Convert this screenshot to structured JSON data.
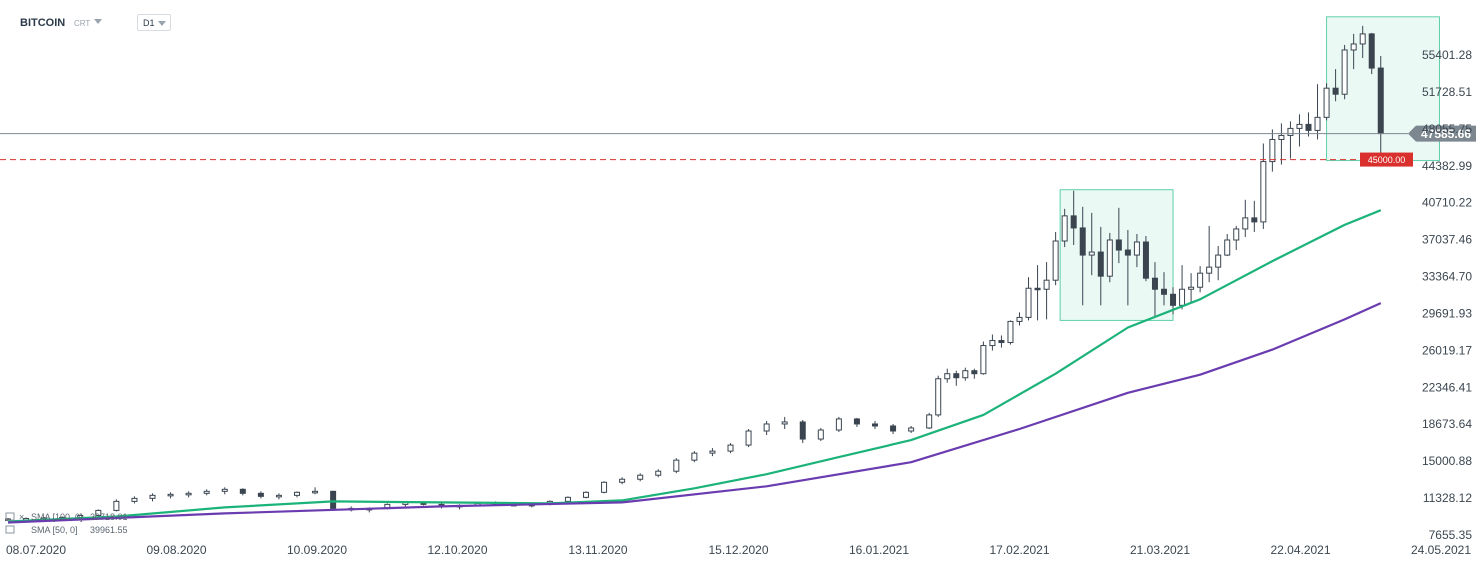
{
  "header": {
    "symbol": "BITCOIN",
    "chart_type": "CRT",
    "timeframe": "D1"
  },
  "indicators": [
    {
      "label": "SMA [100, 0]",
      "value": "30718.01",
      "color": "#6a3cb0"
    },
    {
      "label": "SMA [50, 0]",
      "value": "39961.55",
      "color": "#1bb37a"
    }
  ],
  "price_levels": {
    "current": {
      "value": 47585.66,
      "label": "47585.66",
      "color": "#7d8790"
    },
    "alert": {
      "value": 45000,
      "label": "45000.00",
      "color": "#d9302e"
    }
  },
  "chart_data": {
    "type": "candlestick",
    "title": "BITCOIN",
    "timeframe": "D1",
    "xlabel": "",
    "ylabel": "",
    "x_ticks": [
      "08.07.2020",
      "09.08.2020",
      "10.09.2020",
      "12.10.2020",
      "13.11.2020",
      "15.12.2020",
      "16.01.2021",
      "17.02.2021",
      "21.03.2021",
      "22.04.2021",
      "24.05.2021"
    ],
    "y_ticks": [
      "55401.28",
      "51728.51",
      "48055.75",
      "44382.99",
      "40710.22",
      "37037.46",
      "33364.70",
      "29691.93",
      "26019.17",
      "22346.41",
      "18673.64",
      "15000.88",
      "11328.12",
      "7655.35"
    ],
    "ylim": [
      7655.35,
      58500
    ],
    "x_range_days": [
      0,
      320
    ],
    "ohlc_by_day": [
      [
        0,
        9200,
        9350,
        9100,
        9250
      ],
      [
        4,
        9250,
        9400,
        9150,
        9300
      ],
      [
        8,
        9300,
        9450,
        9200,
        9350
      ],
      [
        12,
        9350,
        9500,
        9200,
        9400
      ],
      [
        16,
        9400,
        9700,
        9300,
        9600
      ],
      [
        20,
        9600,
        10200,
        9500,
        10100
      ],
      [
        24,
        10100,
        11200,
        10000,
        11000
      ],
      [
        28,
        11000,
        11500,
        10800,
        11300
      ],
      [
        32,
        11300,
        11800,
        11000,
        11600
      ],
      [
        36,
        11600,
        11900,
        11300,
        11700
      ],
      [
        40,
        11700,
        12000,
        11400,
        11800
      ],
      [
        44,
        11800,
        12200,
        11600,
        12000
      ],
      [
        48,
        12000,
        12400,
        11700,
        12200
      ],
      [
        52,
        12200,
        12300,
        11600,
        11800
      ],
      [
        56,
        11800,
        12000,
        11300,
        11500
      ],
      [
        60,
        11500,
        11800,
        11200,
        11600
      ],
      [
        64,
        11600,
        12000,
        11400,
        11900
      ],
      [
        68,
        11900,
        12400,
        11700,
        12000
      ],
      [
        72,
        12000,
        12050,
        10100,
        10300
      ],
      [
        76,
        10300,
        10500,
        10000,
        10200
      ],
      [
        80,
        10200,
        10400,
        9900,
        10300
      ],
      [
        84,
        10300,
        10800,
        10200,
        10700
      ],
      [
        88,
        10700,
        11000,
        10500,
        10900
      ],
      [
        92,
        10900,
        11000,
        10600,
        10700
      ],
      [
        96,
        10700,
        10800,
        10300,
        10500
      ],
      [
        100,
        10500,
        10700,
        10200,
        10600
      ],
      [
        104,
        10600,
        10900,
        10500,
        10800
      ],
      [
        108,
        10800,
        11000,
        10600,
        10700
      ],
      [
        112,
        10700,
        10900,
        10500,
        10600
      ],
      [
        116,
        10600,
        10800,
        10400,
        10700
      ],
      [
        120,
        10700,
        11100,
        10600,
        11000
      ],
      [
        124,
        11000,
        11500,
        10900,
        11400
      ],
      [
        128,
        11400,
        12000,
        11300,
        11900
      ],
      [
        132,
        11900,
        13000,
        11800,
        12900
      ],
      [
        136,
        12900,
        13400,
        12700,
        13200
      ],
      [
        140,
        13200,
        13800,
        13000,
        13600
      ],
      [
        144,
        13600,
        14200,
        13400,
        14000
      ],
      [
        148,
        14000,
        15300,
        13800,
        15100
      ],
      [
        152,
        15100,
        16000,
        14900,
        15800
      ],
      [
        156,
        15800,
        16300,
        15500,
        16000
      ],
      [
        160,
        16000,
        16800,
        15800,
        16600
      ],
      [
        164,
        16600,
        18200,
        16400,
        18000
      ],
      [
        168,
        18000,
        19000,
        17600,
        18700
      ],
      [
        172,
        18700,
        19400,
        18200,
        18900
      ],
      [
        176,
        18900,
        19100,
        16800,
        17200
      ],
      [
        180,
        17200,
        18300,
        17000,
        18100
      ],
      [
        184,
        18100,
        19400,
        17900,
        19200
      ],
      [
        188,
        19200,
        19300,
        18400,
        18700
      ],
      [
        192,
        18700,
        19000,
        18200,
        18500
      ],
      [
        196,
        18500,
        18700,
        17700,
        18000
      ],
      [
        200,
        18000,
        18500,
        17800,
        18300
      ],
      [
        204,
        18300,
        19800,
        18200,
        19600
      ],
      [
        206,
        19600,
        23500,
        19400,
        23200
      ],
      [
        208,
        23200,
        24200,
        22800,
        23700
      ],
      [
        210,
        23700,
        24000,
        22500,
        23300
      ],
      [
        212,
        23300,
        24300,
        23000,
        24000
      ],
      [
        214,
        24000,
        24200,
        23200,
        23700
      ],
      [
        216,
        23700,
        26900,
        23600,
        26500
      ],
      [
        218,
        26500,
        27600,
        26000,
        27000
      ],
      [
        220,
        27000,
        27500,
        26300,
        26800
      ],
      [
        222,
        26800,
        29000,
        26600,
        28900
      ],
      [
        224,
        28900,
        29800,
        28500,
        29300
      ],
      [
        226,
        29300,
        33300,
        29000,
        32200
      ],
      [
        228,
        32200,
        34500,
        29000,
        32100
      ],
      [
        230,
        32100,
        34800,
        29100,
        33000
      ],
      [
        232,
        33000,
        37800,
        32500,
        36900
      ],
      [
        234,
        36900,
        40100,
        36300,
        39400
      ],
      [
        236,
        39400,
        41900,
        36500,
        38200
      ],
      [
        238,
        38200,
        40300,
        30500,
        35500
      ],
      [
        240,
        35500,
        39700,
        33500,
        35800
      ],
      [
        242,
        35800,
        38300,
        30500,
        33400
      ],
      [
        244,
        33400,
        37700,
        32800,
        37000
      ],
      [
        246,
        37000,
        40200,
        34700,
        36000
      ],
      [
        248,
        36000,
        38000,
        30500,
        35500
      ],
      [
        250,
        35500,
        37600,
        34300,
        36800
      ],
      [
        252,
        36800,
        37400,
        32900,
        33200
      ],
      [
        254,
        33200,
        34800,
        29400,
        32100
      ],
      [
        256,
        32100,
        33800,
        30500,
        31600
      ],
      [
        258,
        31600,
        32300,
        29600,
        30500
      ],
      [
        260,
        30500,
        34500,
        30100,
        32100
      ],
      [
        262,
        32100,
        33700,
        30800,
        32300
      ],
      [
        264,
        32300,
        34400,
        31800,
        33700
      ],
      [
        266,
        33700,
        38400,
        32800,
        34300
      ],
      [
        268,
        34300,
        36400,
        33000,
        35500
      ],
      [
        270,
        35500,
        37600,
        35400,
        37000
      ],
      [
        272,
        37000,
        38400,
        36000,
        38100
      ],
      [
        274,
        38100,
        41000,
        37300,
        39200
      ],
      [
        276,
        39200,
        40900,
        37800,
        38800
      ],
      [
        278,
        38800,
        46600,
        38100,
        44800
      ],
      [
        280,
        44800,
        48000,
        43800,
        47000
      ],
      [
        282,
        47000,
        48600,
        44500,
        47400
      ],
      [
        284,
        47400,
        48800,
        45100,
        48100
      ],
      [
        286,
        48100,
        49500,
        46300,
        48500
      ],
      [
        288,
        48500,
        49700,
        47300,
        47900
      ],
      [
        290,
        47900,
        52500,
        47000,
        49200
      ],
      [
        292,
        49200,
        52600,
        48900,
        52100
      ],
      [
        294,
        52100,
        54000,
        50800,
        51500
      ],
      [
        296,
        51500,
        56400,
        51000,
        55900
      ],
      [
        298,
        55900,
        57500,
        54000,
        56500
      ],
      [
        300,
        56500,
        58300,
        55100,
        57500
      ],
      [
        302,
        57500,
        57600,
        53500,
        54100
      ],
      [
        304,
        54100,
        55300,
        45000,
        47585
      ]
    ],
    "overlays": [
      {
        "name": "SMA [50, 0]",
        "color": "#1bb37a",
        "points": [
          [
            0,
            9000
          ],
          [
            24,
            9500
          ],
          [
            48,
            10400
          ],
          [
            72,
            11000
          ],
          [
            96,
            10900
          ],
          [
            120,
            10800
          ],
          [
            136,
            11100
          ],
          [
            152,
            12300
          ],
          [
            168,
            13700
          ],
          [
            184,
            15400
          ],
          [
            200,
            17100
          ],
          [
            216,
            19600
          ],
          [
            232,
            23700
          ],
          [
            248,
            28300
          ],
          [
            264,
            31100
          ],
          [
            280,
            34900
          ],
          [
            296,
            38500
          ],
          [
            304,
            39962
          ]
        ]
      },
      {
        "name": "SMA [100, 0]",
        "color": "#6a3cb0",
        "points": [
          [
            0,
            8900
          ],
          [
            48,
            9800
          ],
          [
            96,
            10500
          ],
          [
            136,
            10900
          ],
          [
            168,
            12500
          ],
          [
            200,
            14900
          ],
          [
            224,
            18200
          ],
          [
            248,
            21800
          ],
          [
            264,
            23600
          ],
          [
            280,
            26100
          ],
          [
            296,
            29100
          ],
          [
            304,
            30718
          ]
        ]
      }
    ],
    "highlight_boxes": [
      {
        "start_day": 233,
        "end_day": 258,
        "low": 29000,
        "high": 42000,
        "color": "#c7efe2"
      },
      {
        "start_day": 292,
        "end_day": 317,
        "low": 44900,
        "high": 59200,
        "color": "#c7efe2"
      }
    ]
  }
}
